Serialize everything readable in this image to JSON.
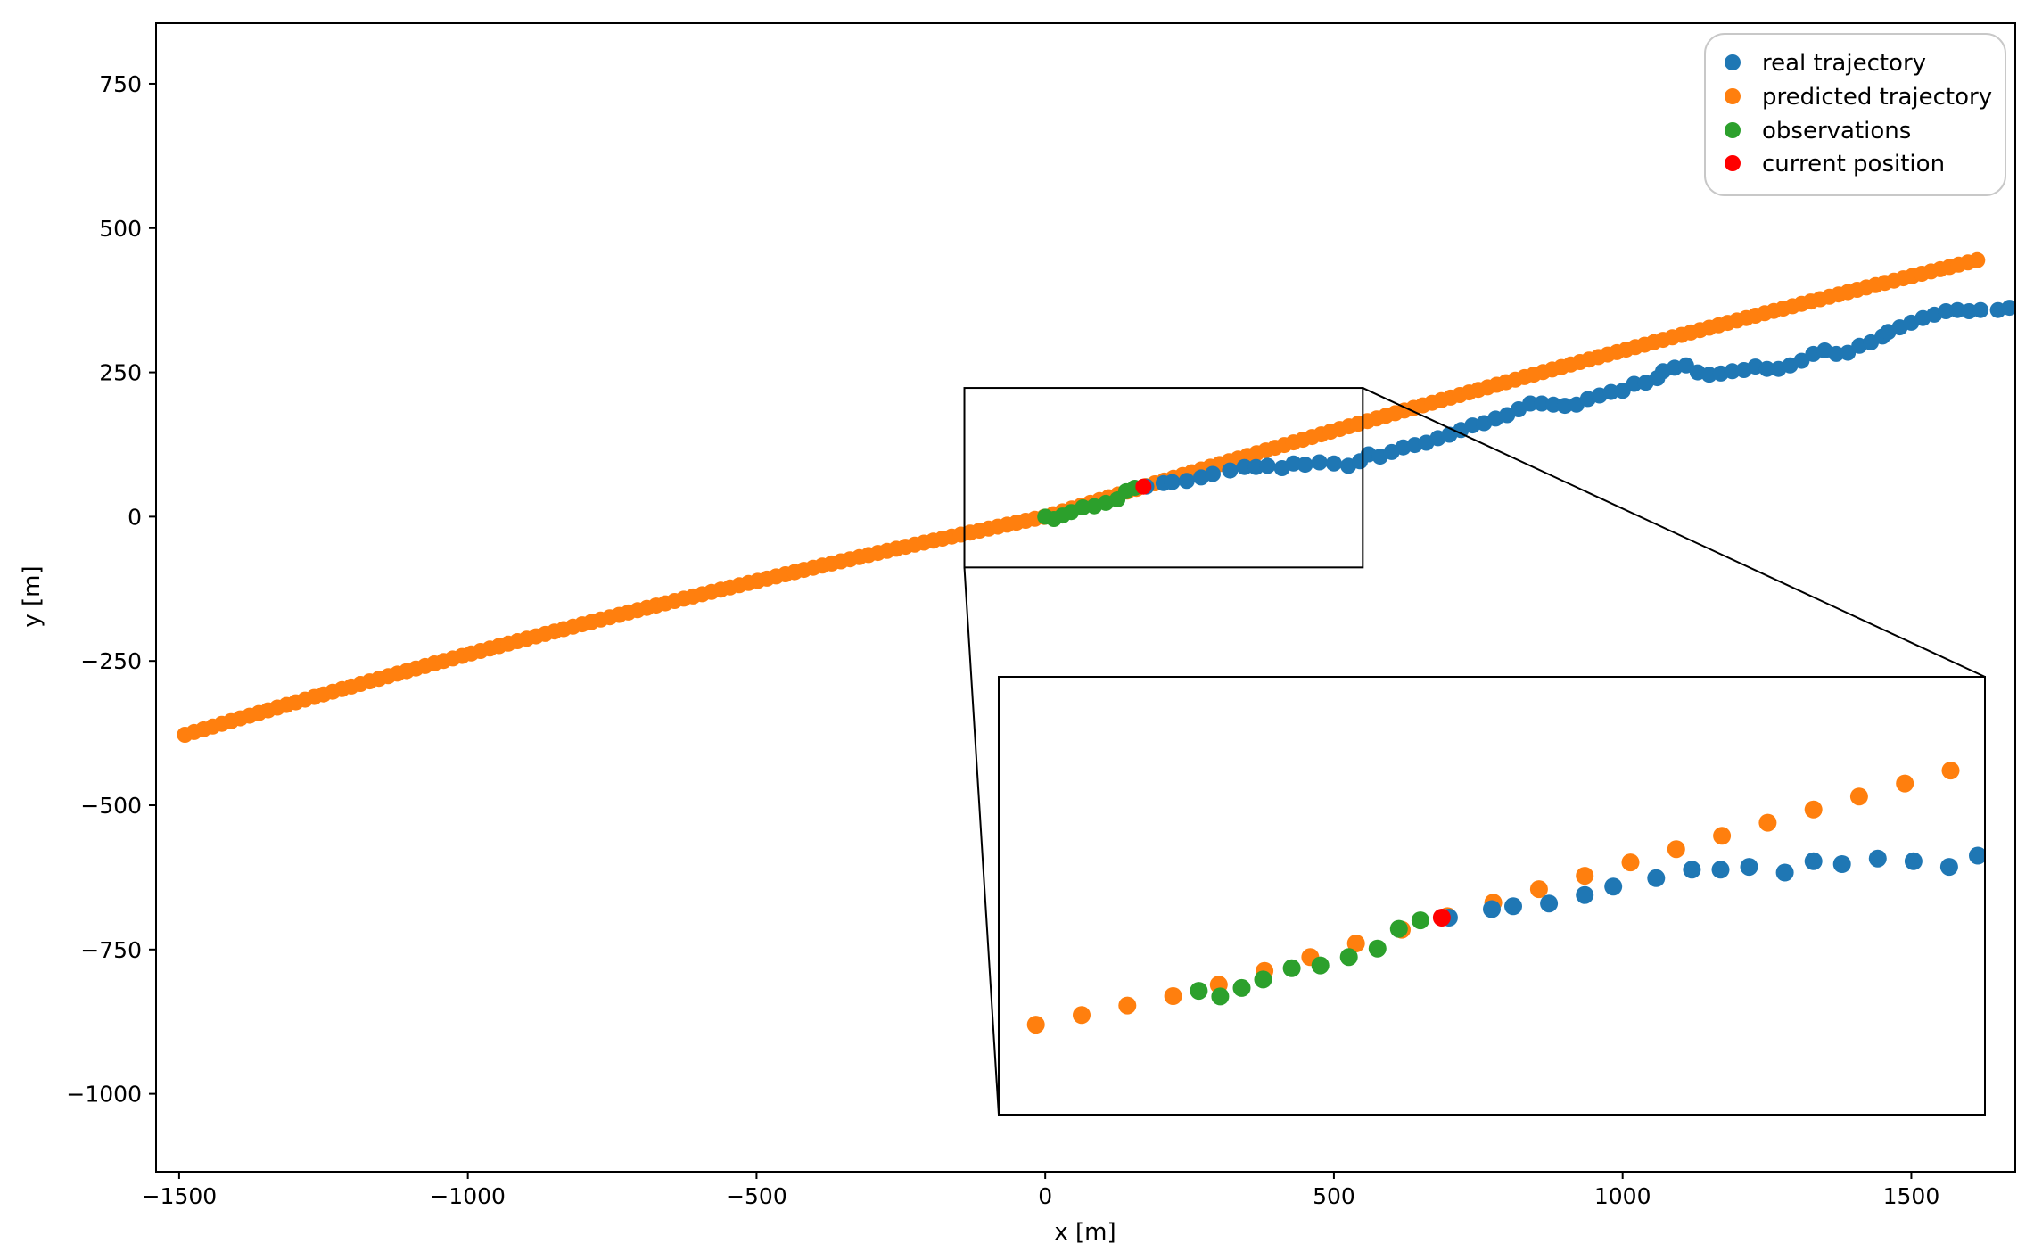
{
  "chart_data": {
    "type": "scatter",
    "xlabel": "x [m]",
    "ylabel": "y [m]",
    "xlim": [
      -1540,
      1680
    ],
    "ylim": [
      -1135,
      855
    ],
    "x_ticks": [
      -1500,
      -1000,
      -500,
      0,
      500,
      1000,
      1500
    ],
    "x_tick_labels": [
      "−1500",
      "−1000",
      "−500",
      "0",
      "500",
      "1000",
      "1500"
    ],
    "y_ticks": [
      750,
      500,
      250,
      0,
      -250,
      -500,
      -750,
      -1000
    ],
    "y_tick_labels": [
      "750",
      "500",
      "250",
      "0",
      "−250",
      "−500",
      "−750",
      "−1000"
    ],
    "grid": false,
    "legend_position": "top-right",
    "series": [
      {
        "name": "real trajectory",
        "color": "#1f77b4",
        "points": [
          [
            175,
            52
          ],
          [
            205,
            58
          ],
          [
            220,
            60
          ],
          [
            245,
            62
          ],
          [
            270,
            68
          ],
          [
            290,
            74
          ],
          [
            320,
            80
          ],
          [
            345,
            86
          ],
          [
            365,
            86
          ],
          [
            385,
            88
          ],
          [
            410,
            84
          ],
          [
            430,
            92
          ],
          [
            450,
            90
          ],
          [
            475,
            94
          ],
          [
            500,
            92
          ],
          [
            525,
            88
          ],
          [
            545,
            96
          ],
          [
            560,
            108
          ],
          [
            580,
            104
          ],
          [
            600,
            112
          ],
          [
            620,
            120
          ],
          [
            640,
            124
          ],
          [
            660,
            128
          ],
          [
            680,
            136
          ],
          [
            700,
            142
          ],
          [
            720,
            150
          ],
          [
            740,
            158
          ],
          [
            760,
            162
          ],
          [
            780,
            170
          ],
          [
            800,
            176
          ],
          [
            820,
            186
          ],
          [
            840,
            196
          ],
          [
            860,
            196
          ],
          [
            880,
            194
          ],
          [
            900,
            192
          ],
          [
            920,
            194
          ],
          [
            940,
            204
          ],
          [
            960,
            210
          ],
          [
            980,
            216
          ],
          [
            1000,
            218
          ],
          [
            1020,
            230
          ],
          [
            1040,
            232
          ],
          [
            1060,
            240
          ],
          [
            1070,
            252
          ],
          [
            1090,
            258
          ],
          [
            1110,
            262
          ],
          [
            1130,
            250
          ],
          [
            1150,
            246
          ],
          [
            1170,
            248
          ],
          [
            1190,
            252
          ],
          [
            1210,
            254
          ],
          [
            1230,
            260
          ],
          [
            1250,
            256
          ],
          [
            1270,
            256
          ],
          [
            1290,
            262
          ],
          [
            1310,
            270
          ],
          [
            1330,
            282
          ],
          [
            1350,
            288
          ],
          [
            1370,
            282
          ],
          [
            1390,
            284
          ],
          [
            1410,
            296
          ],
          [
            1430,
            302
          ],
          [
            1450,
            312
          ],
          [
            1460,
            320
          ],
          [
            1480,
            328
          ],
          [
            1500,
            336
          ],
          [
            1520,
            344
          ],
          [
            1540,
            350
          ],
          [
            1560,
            356
          ],
          [
            1580,
            358
          ],
          [
            1600,
            356
          ],
          [
            1620,
            358
          ],
          [
            1650,
            358
          ],
          [
            1670,
            362
          ]
        ]
      },
      {
        "name": "predicted trajectory",
        "color": "#ff7f0e",
        "x_range": [
          -1490,
          1625
        ],
        "x_step": 16,
        "y_range": [
          -378,
          447
        ],
        "y_at_origin": 0
      },
      {
        "name": "observations",
        "color": "#2ca02c",
        "points": [
          [
            0,
            0
          ],
          [
            15,
            -4
          ],
          [
            30,
            2
          ],
          [
            45,
            8
          ],
          [
            65,
            16
          ],
          [
            85,
            18
          ],
          [
            105,
            24
          ],
          [
            125,
            30
          ],
          [
            140,
            44
          ],
          [
            155,
            50
          ]
        ]
      },
      {
        "name": "current position",
        "color": "#ff0000",
        "points": [
          [
            170,
            52
          ]
        ]
      }
    ],
    "inset": {
      "xlim": [
        -140,
        550
      ],
      "ylim": [
        -88,
        223
      ]
    }
  }
}
